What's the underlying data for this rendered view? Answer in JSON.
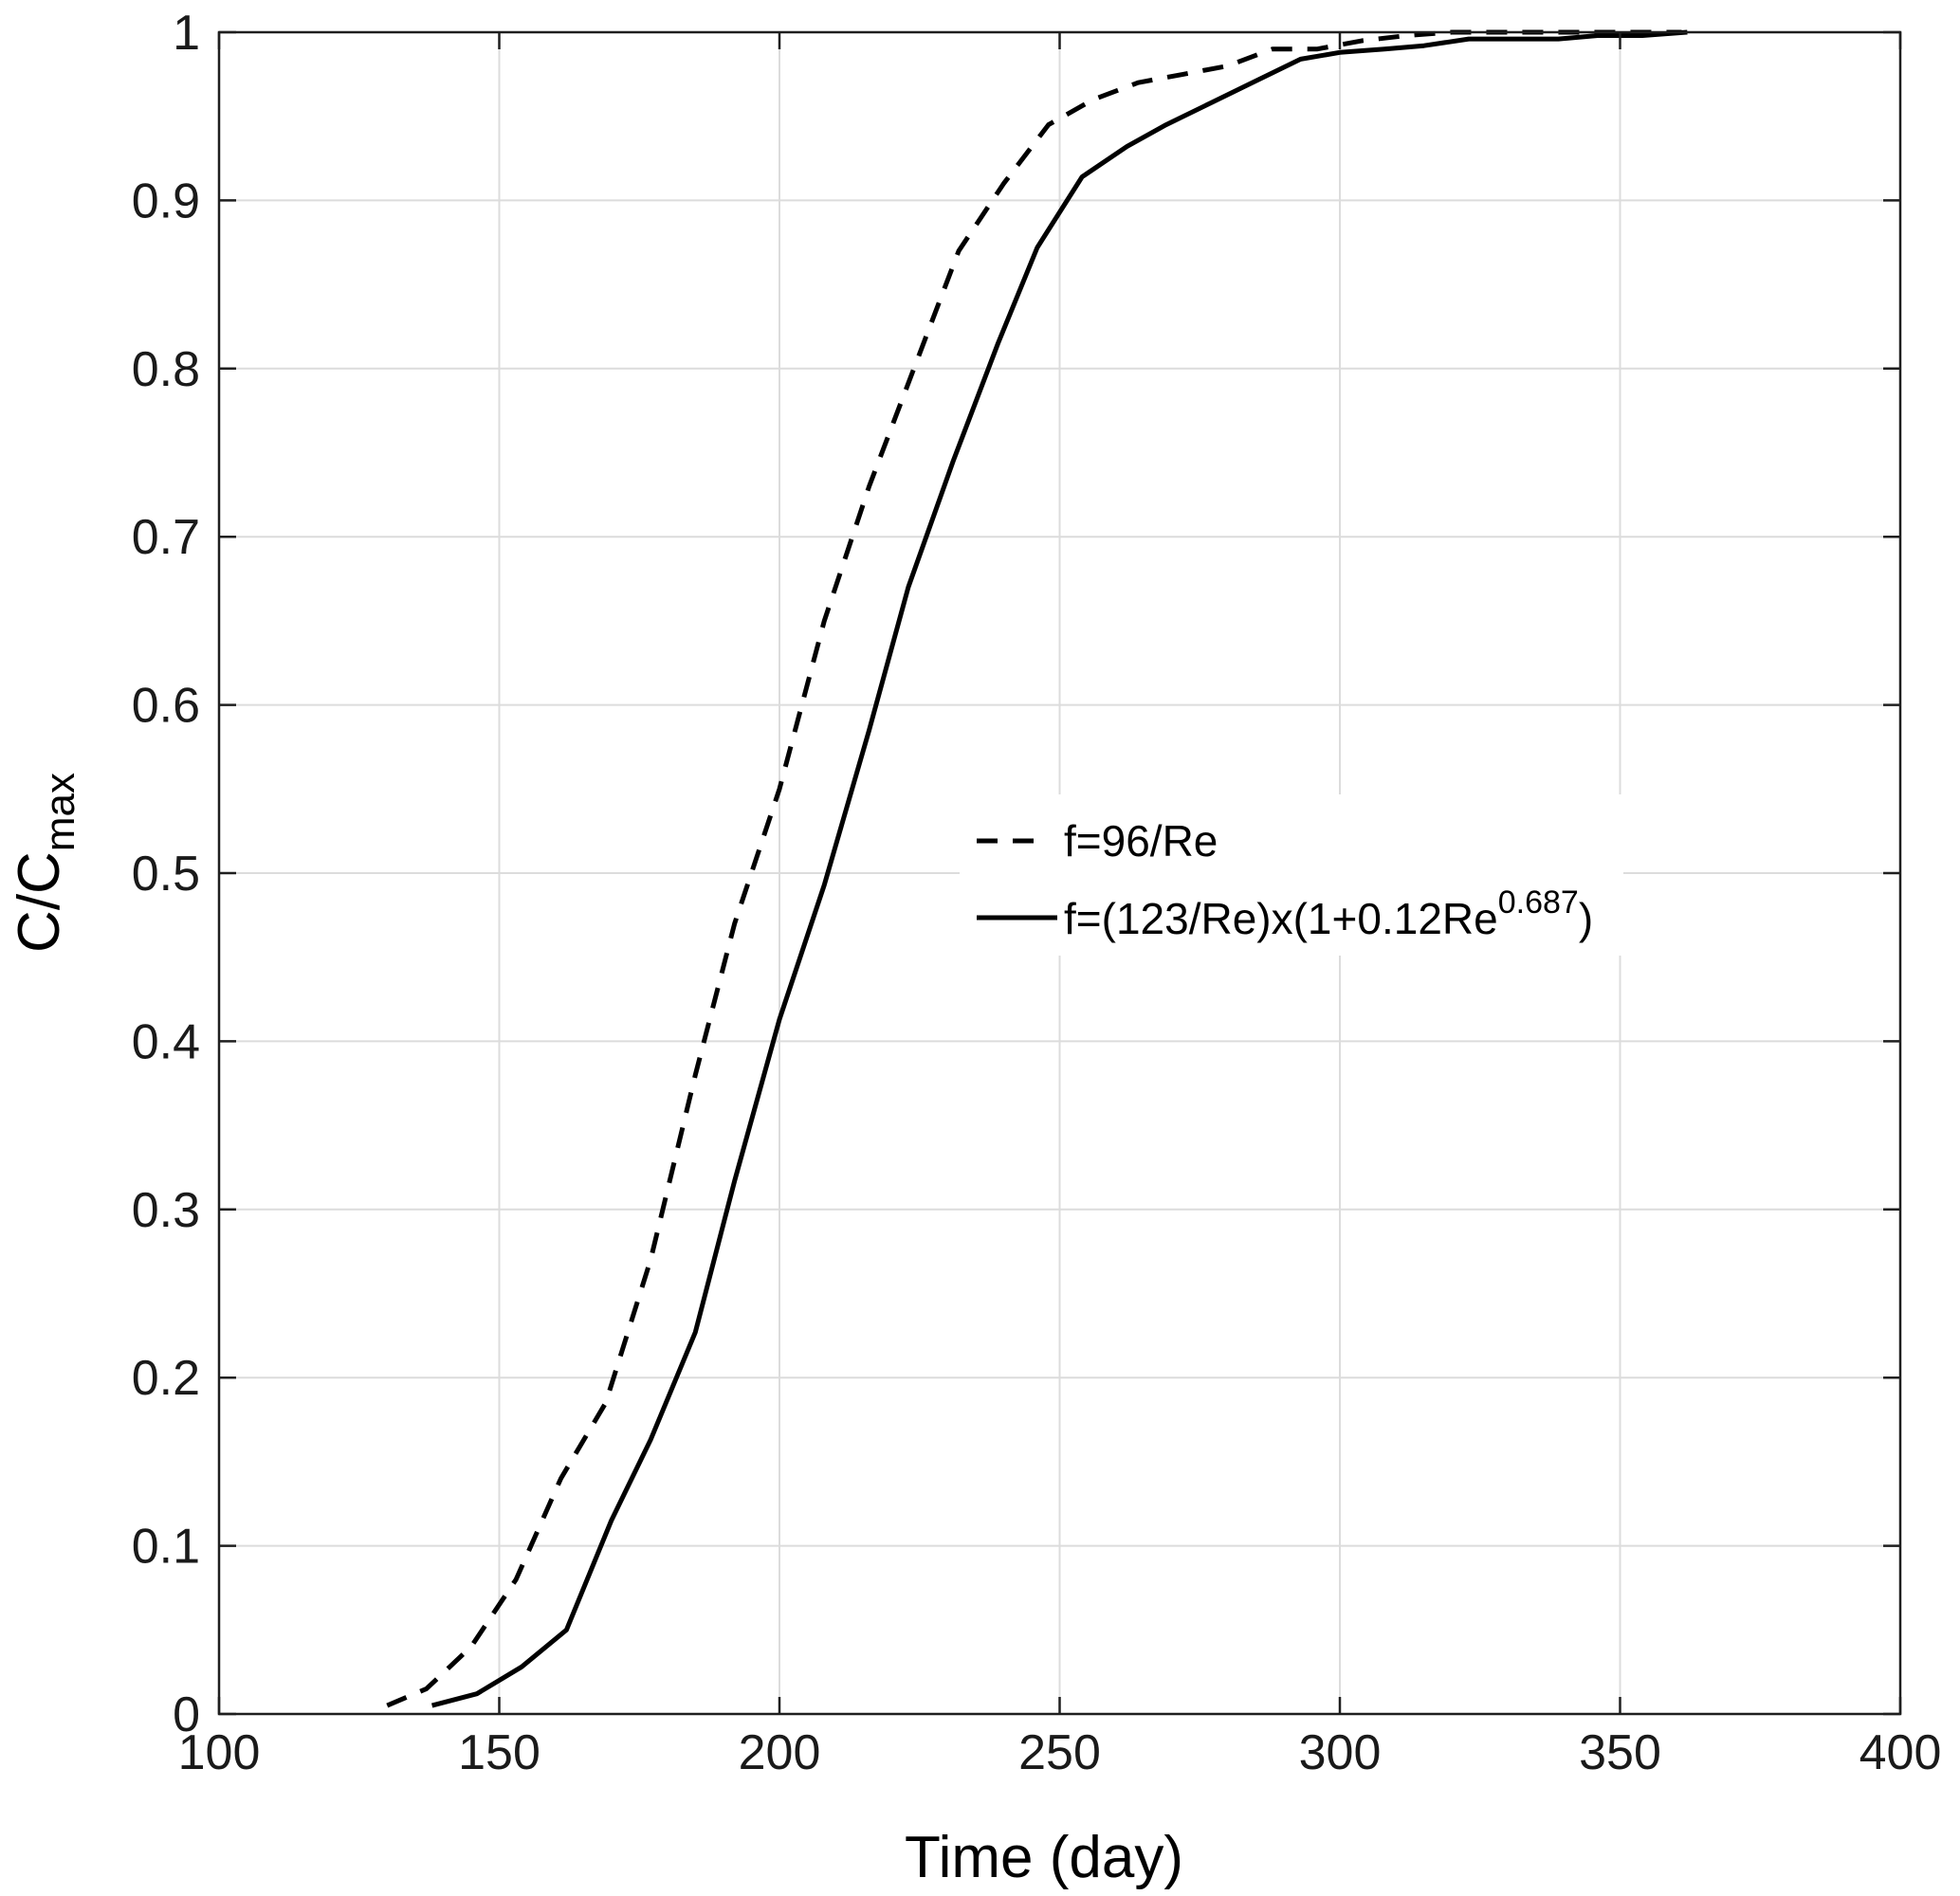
{
  "chart_data": {
    "type": "line",
    "title": "",
    "xlabel": "Time (day)",
    "ylabel": {
      "main": "C/C",
      "sub": "max"
    },
    "xlim": [
      100,
      400
    ],
    "ylim": [
      0,
      1
    ],
    "xticks": [
      100,
      150,
      200,
      250,
      300,
      350,
      400
    ],
    "yticks": [
      0,
      0.1,
      0.2,
      0.3,
      0.4,
      0.5,
      0.6,
      0.7,
      0.8,
      0.9,
      1
    ],
    "xtick_labels": [
      "100",
      "150",
      "200",
      "250",
      "300",
      "350",
      "400"
    ],
    "ytick_labels": [
      "0",
      "0.1",
      "0.2",
      "0.3",
      "0.4",
      "0.5",
      "0.6",
      "0.7",
      "0.8",
      "0.9",
      "1"
    ],
    "grid": true,
    "legend_position": "center-right",
    "series": [
      {
        "name": {
          "text": "f=96/Re",
          "sup": ""
        },
        "style": "dashed",
        "color": "#000000",
        "x": [
          130,
          137,
          145,
          153,
          161,
          169,
          177,
          185,
          192,
          200,
          208,
          216,
          224,
          232,
          240,
          248,
          256,
          264,
          272,
          280,
          288,
          296,
          304,
          312,
          320,
          328,
          336,
          344,
          352,
          361
        ],
        "y": [
          0.005,
          0.015,
          0.04,
          0.08,
          0.14,
          0.185,
          0.27,
          0.38,
          0.47,
          0.55,
          0.65,
          0.73,
          0.8,
          0.87,
          0.91,
          0.945,
          0.96,
          0.97,
          0.975,
          0.98,
          0.99,
          0.99,
          0.995,
          0.998,
          1.0,
          1.0,
          1.0,
          1.0,
          1.0,
          1.0
        ]
      },
      {
        "name": {
          "text": "f=(123/Re)x(1+0.12Re",
          "sup": "0.687",
          "tail": ")"
        },
        "style": "solid",
        "color": "#000000",
        "x": [
          138,
          146,
          154,
          162,
          170,
          177,
          185,
          192,
          200,
          208,
          216,
          223,
          231,
          239,
          246,
          254,
          262,
          269,
          277,
          285,
          293,
          300,
          308,
          315,
          323,
          331,
          339,
          346,
          354,
          362
        ],
        "y": [
          0.005,
          0.012,
          0.028,
          0.05,
          0.115,
          0.163,
          0.227,
          0.317,
          0.413,
          0.493,
          0.585,
          0.67,
          0.745,
          0.815,
          0.872,
          0.914,
          0.932,
          0.945,
          0.958,
          0.971,
          0.984,
          0.988,
          0.99,
          0.992,
          0.996,
          0.996,
          0.996,
          0.998,
          0.998,
          1.0
        ]
      }
    ]
  }
}
